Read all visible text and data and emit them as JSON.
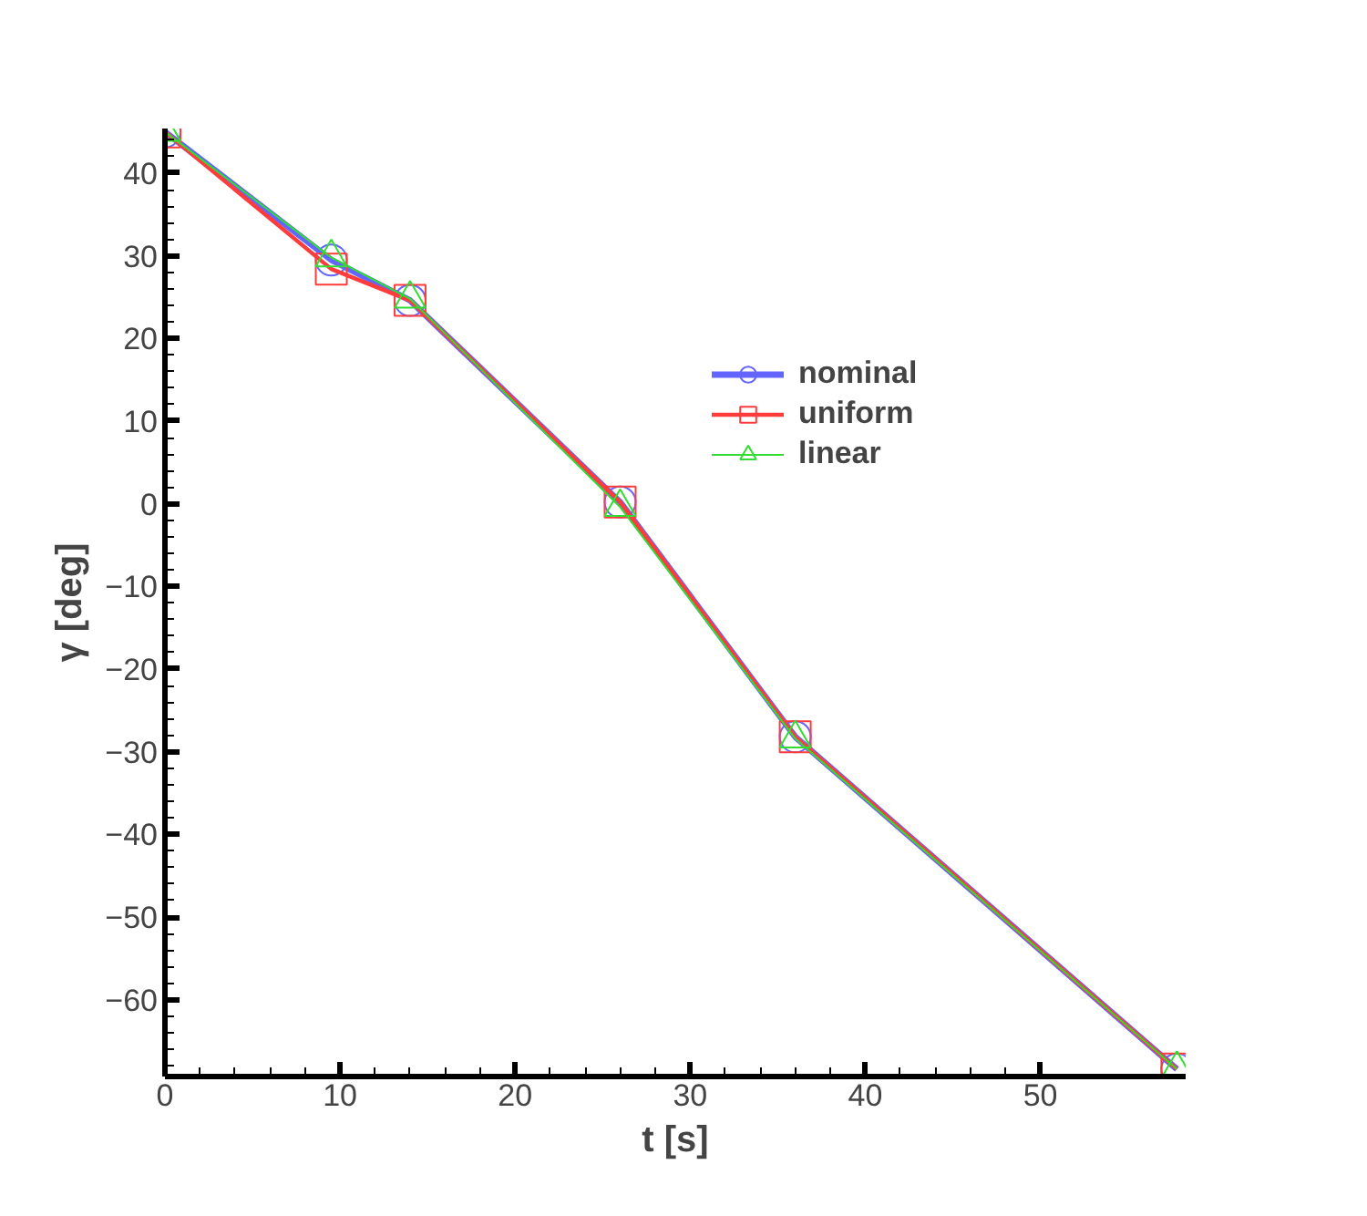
{
  "chart_data": {
    "type": "line",
    "xlabel": "t [s]",
    "ylabel": "γ [deg]",
    "xlim": [
      0,
      58.3
    ],
    "ylim": [
      -69.3,
      45.4
    ],
    "xticks": [
      0,
      10,
      20,
      30,
      40,
      50
    ],
    "yticks": [
      -60,
      -50,
      -40,
      -30,
      -20,
      -10,
      0,
      10,
      20,
      30,
      40
    ],
    "x": [
      0,
      9.5,
      14.0,
      26.0,
      36.0,
      57.8
    ],
    "series": [
      {
        "name": "nominal",
        "color": "#6464ff",
        "marker": "circle",
        "values": [
          45,
          29.5,
          24.6,
          0.2,
          -28.2,
          -68.4
        ]
      },
      {
        "name": "uniform",
        "color": "#ff3c3c",
        "marker": "square",
        "values": [
          45,
          28.4,
          24.6,
          0.2,
          -28.2,
          -68.4
        ]
      },
      {
        "name": "linear",
        "color": "#32dc32",
        "marker": "triangle",
        "values": [
          45,
          29.8,
          24.8,
          -0.4,
          -28.4,
          -68.4
        ]
      }
    ],
    "legend": "top right",
    "grid": false,
    "line_style": "solid"
  }
}
